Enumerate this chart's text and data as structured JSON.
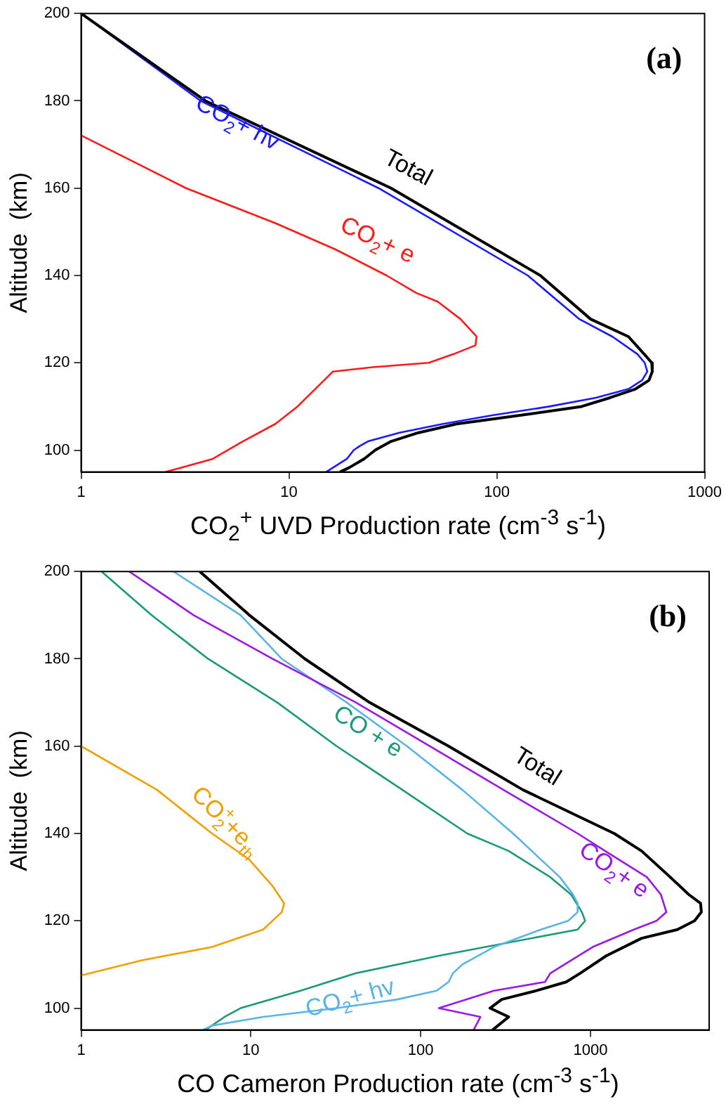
{
  "chart_data": [
    {
      "type": "line",
      "annotations": [
        "(a)"
      ],
      "xlabel": "CO$_{2}$$^{+}$ UVD Production rate  (cm$^{-3}$ s$^{-1}$)",
      "ylabel": "Altitude  (km)",
      "log": "x",
      "xlim": [
        1,
        1000
      ],
      "xticks": [
        1,
        10,
        100,
        1000
      ],
      "ylim": [
        95,
        200
      ],
      "yticks": [
        100,
        120,
        140,
        160,
        180,
        200
      ],
      "grid": false,
      "legend": false,
      "marker": "none",
      "line_style": "solid",
      "series": [
        {
          "name": "Total",
          "color": "#000000",
          "x": [
            1.0,
            3.96,
            31,
            162,
            283,
            430,
            512,
            557,
            560,
            540,
            465,
            350,
            256,
            131,
            64,
            42,
            31,
            26,
            23,
            19.5,
            17.6
          ],
          "values": [
            200,
            180,
            160,
            140,
            130,
            126,
            122,
            120,
            118,
            116,
            114,
            112,
            110,
            108,
            106,
            104,
            102,
            100,
            98,
            96,
            95
          ]
        },
        {
          "name": "CO$_{2}$+ hv",
          "color": "#1a1aff",
          "x": [
            1.0,
            3.76,
            27,
            141,
            250,
            360,
            475,
            515,
            530,
            500,
            430,
            300,
            179,
            96,
            55,
            34,
            24,
            22,
            20.5,
            19,
            16.3,
            15.1
          ],
          "values": [
            200,
            180,
            160,
            140,
            130,
            126,
            122,
            120,
            118,
            116,
            114,
            112,
            110,
            108,
            106,
            104,
            102,
            101,
            100,
            98,
            96,
            95
          ]
        },
        {
          "name": "CO$_{2}$+ e",
          "color": "#ff1a1a",
          "x": [
            1.0,
            3.2,
            8.6,
            16.7,
            29.5,
            41,
            52,
            67,
            80,
            79,
            62,
            47,
            25.3,
            16.3,
            11,
            8.6,
            6,
            4.3,
            2.55
          ],
          "values": [
            172.1,
            160,
            152,
            146,
            140,
            136,
            134,
            130,
            126,
            124,
            122,
            120,
            119,
            118,
            110,
            106,
            102,
            98,
            95
          ]
        }
      ]
    },
    {
      "type": "line",
      "annotations": [
        "(b)"
      ],
      "xlabel": "CO Cameron Production rate  (cm$^{-3}$ s$^{-1}$)",
      "ylabel": "Altitude  (km)",
      "log": "x",
      "xlim": [
        1,
        5000
      ],
      "xticks": [
        1,
        10,
        100,
        1000
      ],
      "ylim": [
        95,
        200
      ],
      "yticks": [
        100,
        120,
        140,
        160,
        180,
        200
      ],
      "grid": false,
      "legend": false,
      "marker": "none",
      "line_style": "solid",
      "series": [
        {
          "name": "Total",
          "color": "#000000",
          "x": [
            5.0,
            9.8,
            20.8,
            50,
            146,
            400,
            1380,
            2000,
            2950,
            3800,
            4450,
            4500,
            4100,
            3250,
            2000,
            1240,
            870,
            720,
            480,
            300,
            256,
            330,
            265
          ],
          "values": [
            200,
            190,
            180,
            170,
            160,
            150,
            140,
            136,
            130,
            126,
            124,
            122,
            120,
            118,
            116,
            112,
            108,
            106,
            104,
            102,
            100,
            98,
            95
          ]
        },
        {
          "name": "CO$_{2}$+ e",
          "color": "#9b19e6",
          "x": [
            1.92,
            4.6,
            13.4,
            41.6,
            113,
            307,
            840,
            1220,
            2150,
            2600,
            2800,
            2450,
            1800,
            1030,
            580,
            540,
            270,
            128,
            225,
            205
          ],
          "values": [
            200,
            190,
            180,
            170,
            160,
            150,
            140,
            136,
            130,
            126,
            122,
            120,
            118,
            114,
            108,
            106,
            104,
            100,
            98,
            95
          ]
        },
        {
          "name": "CO$_{2}$+ hv",
          "color": "#5ab4e6",
          "x": [
            3.5,
            8.7,
            15.2,
            36.7,
            83,
            176,
            350,
            660,
            790,
            840,
            840,
            740,
            510,
            270,
            176,
            155,
            146,
            124,
            73,
            32,
            11.8,
            5.9,
            5.2
          ],
          "values": [
            200,
            190,
            180,
            170,
            160,
            150,
            140,
            130,
            126,
            124,
            122,
            120,
            118,
            114,
            110,
            108,
            106,
            104,
            102,
            100,
            98,
            96,
            95
          ]
        },
        {
          "name": "CO + e",
          "color": "#199a78",
          "x": [
            1.32,
            2.6,
            5.6,
            14.3,
            32,
            78,
            188,
            330,
            580,
            770,
            890,
            930,
            840,
            128,
            41.6,
            19.6,
            8.7,
            7,
            5.4
          ],
          "values": [
            200,
            190,
            180,
            170,
            160,
            150,
            140,
            136,
            130,
            126,
            122,
            120,
            118,
            112,
            108,
            104,
            100,
            98,
            95
          ]
        },
        {
          "name": "CO$_{2}$$^{+}$+e$_{th}$",
          "color": "#f0a000",
          "x": [
            1,
            2.8,
            5.9,
            9.8,
            13.4,
            15.7,
            15.2,
            11.8,
            5.9,
            2.3,
            1
          ],
          "values": [
            160,
            150,
            140,
            134,
            128,
            124,
            122,
            118,
            114,
            111,
            107.5
          ]
        }
      ]
    }
  ]
}
